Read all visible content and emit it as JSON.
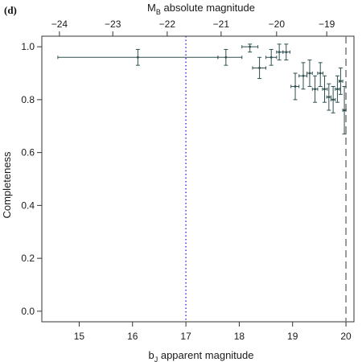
{
  "panel_label": "(d)",
  "chart_data": {
    "type": "scatter",
    "title": "",
    "xlabel": "bJ apparent magnitude",
    "xlabel_parts": {
      "base": "b",
      "sub": "J",
      "rest": " apparent magnitude"
    },
    "ylabel": "Completeness",
    "top_xlabel": "MB absolute magnitude",
    "top_xlabel_parts": {
      "base": "M",
      "sub": "B",
      "rest": " absolute magnitude"
    },
    "xlim": [
      14.3,
      20.15
    ],
    "ylim": [
      -0.04,
      1.04
    ],
    "x_ticks": [
      15,
      16,
      17,
      18,
      19,
      20
    ],
    "x_tick_labels": [
      "15",
      "16",
      "17",
      "18",
      "19",
      "20"
    ],
    "y_ticks": [
      0.0,
      0.2,
      0.4,
      0.6,
      0.8,
      1.0
    ],
    "y_tick_labels": [
      "0.0",
      "0.2",
      "0.4",
      "0.6",
      "0.8",
      "1.0"
    ],
    "top_ticks_at_bj": [
      14.63,
      15.63,
      16.65,
      17.66,
      18.7,
      19.64
    ],
    "top_tick_labels": [
      "−24",
      "−23",
      "−22",
      "−21",
      "−20",
      "−19"
    ],
    "reference_lines": [
      {
        "x": 17.0,
        "style": "dotted",
        "color": "#3b3bd6"
      },
      {
        "x": 20.0,
        "style": "dashed",
        "color": "#7a7a7a"
      }
    ],
    "grid": false,
    "series": [
      {
        "color": "#2f4f4f",
        "points": [
          {
            "x": 16.1,
            "y": 0.96,
            "xmin": 14.6,
            "xmax": 17.6,
            "ymin": 0.93,
            "ymax": 0.99
          },
          {
            "x": 17.75,
            "y": 0.96,
            "xmin": 17.6,
            "xmax": 18.05,
            "ymin": 0.93,
            "ymax": 0.99
          },
          {
            "x": 18.2,
            "y": 1.0,
            "xmin": 18.05,
            "xmax": 18.35,
            "ymin": 0.98,
            "ymax": 1.01
          },
          {
            "x": 18.38,
            "y": 0.92,
            "xmin": 18.25,
            "xmax": 18.5,
            "ymin": 0.88,
            "ymax": 0.96
          },
          {
            "x": 18.6,
            "y": 0.96,
            "xmin": 18.5,
            "xmax": 18.7,
            "ymin": 0.93,
            "ymax": 0.99
          },
          {
            "x": 18.75,
            "y": 0.98,
            "xmin": 18.7,
            "xmax": 18.82,
            "ymin": 0.95,
            "ymax": 1.01
          },
          {
            "x": 18.88,
            "y": 0.98,
            "xmin": 18.82,
            "xmax": 18.95,
            "ymin": 0.95,
            "ymax": 1.01
          },
          {
            "x": 19.05,
            "y": 0.85,
            "xmin": 18.97,
            "xmax": 19.12,
            "ymin": 0.8,
            "ymax": 0.9
          },
          {
            "x": 19.2,
            "y": 0.89,
            "xmin": 19.12,
            "xmax": 19.27,
            "ymin": 0.84,
            "ymax": 0.94
          },
          {
            "x": 19.32,
            "y": 0.9,
            "xmin": 19.27,
            "xmax": 19.37,
            "ymin": 0.85,
            "ymax": 0.95
          },
          {
            "x": 19.42,
            "y": 0.84,
            "xmin": 19.37,
            "xmax": 19.47,
            "ymin": 0.79,
            "ymax": 0.89
          },
          {
            "x": 19.52,
            "y": 0.9,
            "xmin": 19.47,
            "xmax": 19.57,
            "ymin": 0.85,
            "ymax": 0.94
          },
          {
            "x": 19.6,
            "y": 0.84,
            "xmin": 19.56,
            "xmax": 19.65,
            "ymin": 0.79,
            "ymax": 0.89
          },
          {
            "x": 19.68,
            "y": 0.81,
            "xmin": 19.64,
            "xmax": 19.72,
            "ymin": 0.76,
            "ymax": 0.86
          },
          {
            "x": 19.76,
            "y": 0.8,
            "xmin": 19.72,
            "xmax": 19.8,
            "ymin": 0.75,
            "ymax": 0.85
          },
          {
            "x": 19.84,
            "y": 0.84,
            "xmin": 19.8,
            "xmax": 19.88,
            "ymin": 0.79,
            "ymax": 0.89
          },
          {
            "x": 19.9,
            "y": 0.87,
            "xmin": 19.87,
            "xmax": 19.94,
            "ymin": 0.82,
            "ymax": 0.92
          },
          {
            "x": 19.97,
            "y": 0.76,
            "xmin": 19.94,
            "xmax": 20.0,
            "ymin": 0.67,
            "ymax": 0.85
          }
        ]
      }
    ]
  }
}
